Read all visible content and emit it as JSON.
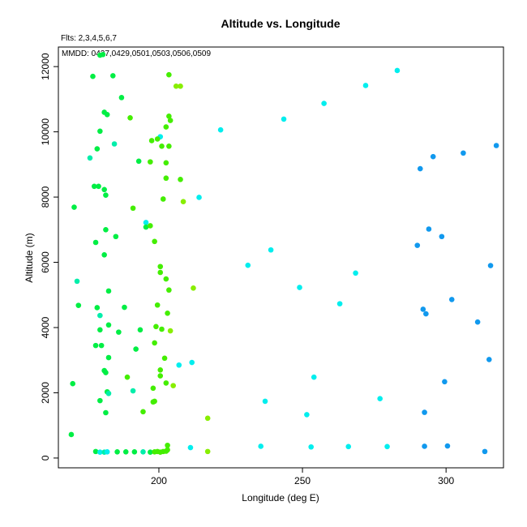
{
  "chart_data": {
    "type": "scatter",
    "title": "Altitude vs. Longitude",
    "subtitle_flts": "Flts: 2,3,4,5,6,7",
    "subtitle_mmdd": "MMDD: 0427,0429,0501,0503,0506,0509",
    "xlabel": "Longitude (deg E)",
    "ylabel": "Altitude (m)",
    "xlim": [
      165,
      320
    ],
    "ylim": [
      -300,
      12600
    ],
    "xticks": [
      200,
      250,
      300
    ],
    "yticks": [
      0,
      2000,
      4000,
      6000,
      8000,
      10000,
      12000
    ],
    "grid": false,
    "colors": {
      "green": "#00ee44",
      "lime": "#44ee00",
      "yellowgreen": "#88ee00",
      "teal": "#00eeaa",
      "cyan": "#00eeee",
      "blue": "#1199ee"
    },
    "points": [
      {
        "x": 179.5,
        "y": 12350,
        "c": "green"
      },
      {
        "x": 180.5,
        "y": 12370,
        "c": "green"
      },
      {
        "x": 177,
        "y": 11700,
        "c": "green"
      },
      {
        "x": 184,
        "y": 11720,
        "c": "green"
      },
      {
        "x": 203.5,
        "y": 11750,
        "c": "lime"
      },
      {
        "x": 206,
        "y": 11400,
        "c": "yellowgreen"
      },
      {
        "x": 207.5,
        "y": 11400,
        "c": "yellowgreen"
      },
      {
        "x": 187,
        "y": 11050,
        "c": "green"
      },
      {
        "x": 181,
        "y": 10600,
        "c": "green"
      },
      {
        "x": 182,
        "y": 10530,
        "c": "green"
      },
      {
        "x": 190,
        "y": 10430,
        "c": "lime"
      },
      {
        "x": 203.5,
        "y": 10480,
        "c": "lime"
      },
      {
        "x": 204,
        "y": 10350,
        "c": "lime"
      },
      {
        "x": 202.5,
        "y": 10150,
        "c": "lime"
      },
      {
        "x": 179.5,
        "y": 10020,
        "c": "green"
      },
      {
        "x": 200.5,
        "y": 9850,
        "c": "cyan"
      },
      {
        "x": 199.5,
        "y": 9780,
        "c": "lime"
      },
      {
        "x": 197.5,
        "y": 9730,
        "c": "lime"
      },
      {
        "x": 184.5,
        "y": 9630,
        "c": "teal"
      },
      {
        "x": 201,
        "y": 9560,
        "c": "lime"
      },
      {
        "x": 203.5,
        "y": 9560,
        "c": "lime"
      },
      {
        "x": 178.5,
        "y": 9480,
        "c": "green"
      },
      {
        "x": 176,
        "y": 9200,
        "c": "teal"
      },
      {
        "x": 193,
        "y": 9100,
        "c": "green"
      },
      {
        "x": 197,
        "y": 9080,
        "c": "lime"
      },
      {
        "x": 202.5,
        "y": 9050,
        "c": "lime"
      },
      {
        "x": 202.5,
        "y": 8580,
        "c": "lime"
      },
      {
        "x": 207.5,
        "y": 8540,
        "c": "lime"
      },
      {
        "x": 177.5,
        "y": 8330,
        "c": "green"
      },
      {
        "x": 179,
        "y": 8330,
        "c": "green"
      },
      {
        "x": 181,
        "y": 8230,
        "c": "green"
      },
      {
        "x": 181.5,
        "y": 8060,
        "c": "green"
      },
      {
        "x": 201.5,
        "y": 7940,
        "c": "lime"
      },
      {
        "x": 208.5,
        "y": 7860,
        "c": "yellowgreen"
      },
      {
        "x": 170.5,
        "y": 7690,
        "c": "green"
      },
      {
        "x": 191,
        "y": 7660,
        "c": "lime"
      },
      {
        "x": 195.5,
        "y": 7220,
        "c": "cyan"
      },
      {
        "x": 195.5,
        "y": 7080,
        "c": "green"
      },
      {
        "x": 197,
        "y": 7120,
        "c": "lime"
      },
      {
        "x": 181.5,
        "y": 7000,
        "c": "green"
      },
      {
        "x": 185,
        "y": 6790,
        "c": "green"
      },
      {
        "x": 198.5,
        "y": 6640,
        "c": "lime"
      },
      {
        "x": 178,
        "y": 6610,
        "c": "green"
      },
      {
        "x": 181,
        "y": 6230,
        "c": "green"
      },
      {
        "x": 200.5,
        "y": 5870,
        "c": "lime"
      },
      {
        "x": 200.5,
        "y": 5690,
        "c": "lime"
      },
      {
        "x": 202.5,
        "y": 5490,
        "c": "lime"
      },
      {
        "x": 171.5,
        "y": 5420,
        "c": "teal"
      },
      {
        "x": 212,
        "y": 5210,
        "c": "yellowgreen"
      },
      {
        "x": 203.5,
        "y": 5150,
        "c": "lime"
      },
      {
        "x": 182.5,
        "y": 5120,
        "c": "green"
      },
      {
        "x": 199.5,
        "y": 4690,
        "c": "lime"
      },
      {
        "x": 172,
        "y": 4680,
        "c": "green"
      },
      {
        "x": 188,
        "y": 4620,
        "c": "green"
      },
      {
        "x": 178.5,
        "y": 4610,
        "c": "green"
      },
      {
        "x": 203,
        "y": 4440,
        "c": "lime"
      },
      {
        "x": 179.5,
        "y": 4370,
        "c": "teal"
      },
      {
        "x": 182.5,
        "y": 4080,
        "c": "green"
      },
      {
        "x": 199,
        "y": 4030,
        "c": "lime"
      },
      {
        "x": 201,
        "y": 3950,
        "c": "lime"
      },
      {
        "x": 179.5,
        "y": 3930,
        "c": "green"
      },
      {
        "x": 193.5,
        "y": 3930,
        "c": "green"
      },
      {
        "x": 204,
        "y": 3900,
        "c": "yellowgreen"
      },
      {
        "x": 186,
        "y": 3860,
        "c": "green"
      },
      {
        "x": 198.5,
        "y": 3530,
        "c": "lime"
      },
      {
        "x": 178,
        "y": 3450,
        "c": "green"
      },
      {
        "x": 180,
        "y": 3450,
        "c": "green"
      },
      {
        "x": 192,
        "y": 3340,
        "c": "green"
      },
      {
        "x": 182.5,
        "y": 3080,
        "c": "green"
      },
      {
        "x": 202,
        "y": 3060,
        "c": "lime"
      },
      {
        "x": 211.5,
        "y": 2930,
        "c": "cyan"
      },
      {
        "x": 207,
        "y": 2850,
        "c": "cyan"
      },
      {
        "x": 200.5,
        "y": 2700,
        "c": "lime"
      },
      {
        "x": 181,
        "y": 2680,
        "c": "green"
      },
      {
        "x": 181.5,
        "y": 2620,
        "c": "green"
      },
      {
        "x": 200.5,
        "y": 2520,
        "c": "lime"
      },
      {
        "x": 189,
        "y": 2480,
        "c": "lime"
      },
      {
        "x": 202.5,
        "y": 2300,
        "c": "lime"
      },
      {
        "x": 170,
        "y": 2280,
        "c": "green"
      },
      {
        "x": 205,
        "y": 2220,
        "c": "yellowgreen"
      },
      {
        "x": 198,
        "y": 2140,
        "c": "lime"
      },
      {
        "x": 191,
        "y": 2060,
        "c": "teal"
      },
      {
        "x": 182,
        "y": 2030,
        "c": "green"
      },
      {
        "x": 182.5,
        "y": 1980,
        "c": "teal"
      },
      {
        "x": 179.5,
        "y": 1760,
        "c": "green"
      },
      {
        "x": 198.5,
        "y": 1740,
        "c": "lime"
      },
      {
        "x": 198,
        "y": 1720,
        "c": "lime"
      },
      {
        "x": 194.5,
        "y": 1420,
        "c": "lime"
      },
      {
        "x": 181.5,
        "y": 1390,
        "c": "green"
      },
      {
        "x": 217,
        "y": 1220,
        "c": "yellowgreen"
      },
      {
        "x": 169.5,
        "y": 720,
        "c": "green"
      },
      {
        "x": 178,
        "y": 200,
        "c": "green"
      },
      {
        "x": 179.5,
        "y": 180,
        "c": "cyan"
      },
      {
        "x": 181,
        "y": 180,
        "c": "teal"
      },
      {
        "x": 182,
        "y": 190,
        "c": "cyan"
      },
      {
        "x": 185.5,
        "y": 190,
        "c": "green"
      },
      {
        "x": 188.5,
        "y": 190,
        "c": "green"
      },
      {
        "x": 191.5,
        "y": 190,
        "c": "green"
      },
      {
        "x": 194.5,
        "y": 190,
        "c": "teal"
      },
      {
        "x": 197,
        "y": 180,
        "c": "green"
      },
      {
        "x": 198.5,
        "y": 190,
        "c": "lime"
      },
      {
        "x": 199.5,
        "y": 200,
        "c": "lime"
      },
      {
        "x": 200.5,
        "y": 180,
        "c": "lime"
      },
      {
        "x": 201.5,
        "y": 200,
        "c": "lime"
      },
      {
        "x": 202.5,
        "y": 210,
        "c": "lime"
      },
      {
        "x": 203,
        "y": 250,
        "c": "lime"
      },
      {
        "x": 203,
        "y": 390,
        "c": "lime"
      },
      {
        "x": 217,
        "y": 200,
        "c": "yellowgreen"
      },
      {
        "x": 283,
        "y": 11880,
        "c": "cyan"
      },
      {
        "x": 272,
        "y": 11420,
        "c": "cyan"
      },
      {
        "x": 257.5,
        "y": 10870,
        "c": "cyan"
      },
      {
        "x": 243.5,
        "y": 10390,
        "c": "cyan"
      },
      {
        "x": 221.5,
        "y": 10060,
        "c": "cyan"
      },
      {
        "x": 214,
        "y": 7990,
        "c": "cyan"
      },
      {
        "x": 239,
        "y": 6380,
        "c": "cyan"
      },
      {
        "x": 231,
        "y": 5910,
        "c": "cyan"
      },
      {
        "x": 268.5,
        "y": 5670,
        "c": "cyan"
      },
      {
        "x": 249,
        "y": 5230,
        "c": "cyan"
      },
      {
        "x": 263,
        "y": 4730,
        "c": "cyan"
      },
      {
        "x": 254,
        "y": 2480,
        "c": "cyan"
      },
      {
        "x": 277,
        "y": 1820,
        "c": "cyan"
      },
      {
        "x": 237,
        "y": 1740,
        "c": "cyan"
      },
      {
        "x": 251.5,
        "y": 1330,
        "c": "cyan"
      },
      {
        "x": 211,
        "y": 320,
        "c": "cyan"
      },
      {
        "x": 235.5,
        "y": 360,
        "c": "cyan"
      },
      {
        "x": 253,
        "y": 340,
        "c": "cyan"
      },
      {
        "x": 266,
        "y": 350,
        "c": "cyan"
      },
      {
        "x": 279.5,
        "y": 350,
        "c": "cyan"
      },
      {
        "x": 317.5,
        "y": 9580,
        "c": "blue"
      },
      {
        "x": 306,
        "y": 9350,
        "c": "blue"
      },
      {
        "x": 295.5,
        "y": 9240,
        "c": "blue"
      },
      {
        "x": 291,
        "y": 8870,
        "c": "blue"
      },
      {
        "x": 294,
        "y": 7020,
        "c": "blue"
      },
      {
        "x": 298.5,
        "y": 6790,
        "c": "blue"
      },
      {
        "x": 290,
        "y": 6520,
        "c": "blue"
      },
      {
        "x": 315.5,
        "y": 5900,
        "c": "blue"
      },
      {
        "x": 302,
        "y": 4860,
        "c": "blue"
      },
      {
        "x": 292,
        "y": 4560,
        "c": "blue"
      },
      {
        "x": 293,
        "y": 4420,
        "c": "blue"
      },
      {
        "x": 311,
        "y": 4170,
        "c": "blue"
      },
      {
        "x": 315,
        "y": 3020,
        "c": "blue"
      },
      {
        "x": 299.5,
        "y": 2340,
        "c": "blue"
      },
      {
        "x": 292.5,
        "y": 1400,
        "c": "blue"
      },
      {
        "x": 292.5,
        "y": 360,
        "c": "blue"
      },
      {
        "x": 300.5,
        "y": 370,
        "c": "blue"
      },
      {
        "x": 313.5,
        "y": 200,
        "c": "blue"
      }
    ]
  }
}
